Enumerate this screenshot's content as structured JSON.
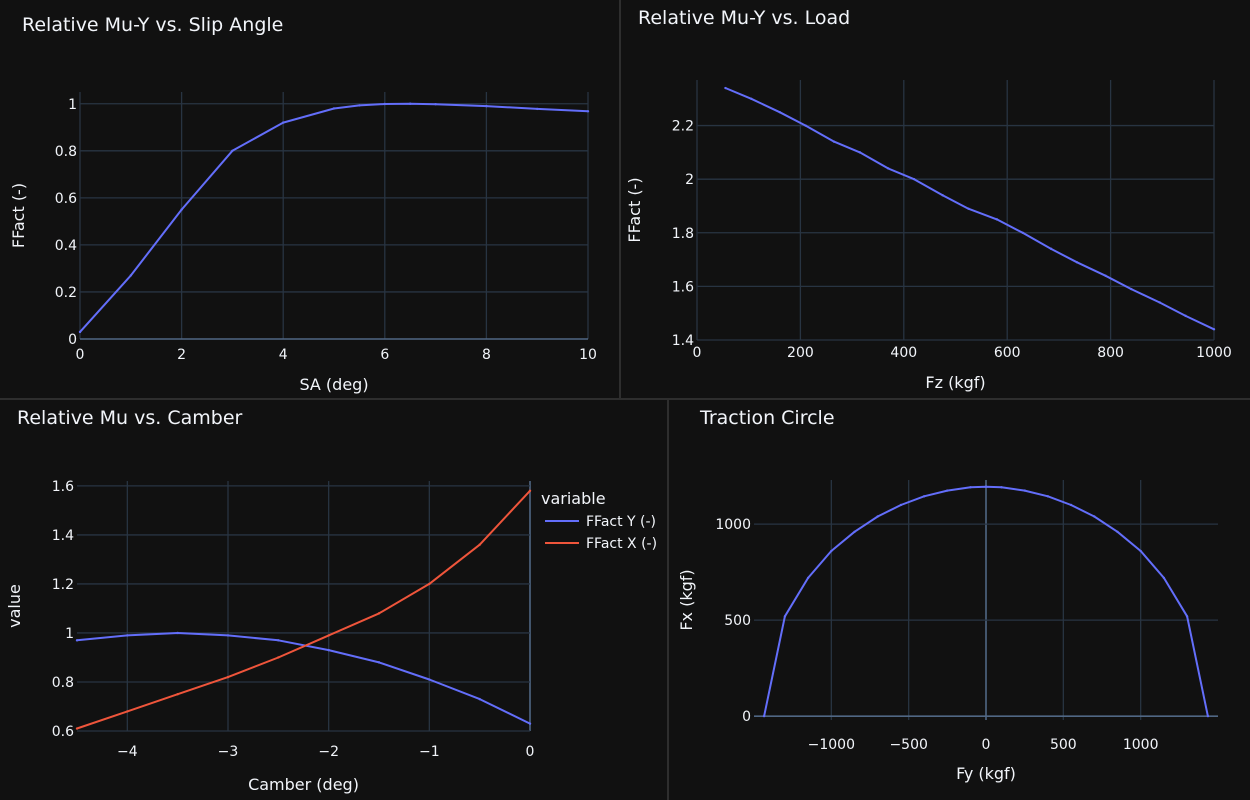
{
  "colors": {
    "background": "#111111",
    "grid": "#283442",
    "zeroline": "#506784",
    "text": "#f2f5fa",
    "series_blue": "#636efa",
    "series_red": "#ef553b"
  },
  "chart_data": [
    {
      "type": "line",
      "title": "Relative Mu-Y vs. Slip Angle",
      "xlabel": "SA (deg)",
      "ylabel": "FFact (-)",
      "xlim": [
        0,
        10
      ],
      "ylim": [
        0,
        1.05
      ],
      "xticks": [
        0,
        2,
        4,
        6,
        8,
        10
      ],
      "yticks": [
        0,
        0.2,
        0.4,
        0.6,
        0.8,
        1
      ],
      "grid": true,
      "series": [
        {
          "color": "#636efa",
          "x": [
            0,
            1,
            2,
            3,
            4,
            5,
            5.5,
            6,
            6.5,
            7,
            8,
            9,
            10
          ],
          "y": [
            0.03,
            0.27,
            0.55,
            0.8,
            0.92,
            0.98,
            0.993,
            0.999,
            1.0,
            0.998,
            0.99,
            0.978,
            0.968
          ]
        }
      ]
    },
    {
      "type": "line",
      "title": "Relative Mu-Y vs. Load",
      "xlabel": "Fz (kgf)",
      "ylabel": "FFact (-)",
      "xlim": [
        0,
        1000
      ],
      "ylim": [
        1.4,
        2.37
      ],
      "xticks": [
        0,
        200,
        400,
        600,
        800,
        1000
      ],
      "yticks": [
        1.4,
        1.6,
        1.8,
        2,
        2.2
      ],
      "grid": true,
      "series": [
        {
          "color": "#636efa",
          "x": [
            55,
            105,
            160,
            210,
            265,
            315,
            370,
            420,
            475,
            525,
            580,
            630,
            685,
            735,
            790,
            840,
            895,
            945,
            1000
          ],
          "y": [
            2.34,
            2.3,
            2.25,
            2.2,
            2.14,
            2.1,
            2.04,
            2.0,
            1.94,
            1.89,
            1.85,
            1.8,
            1.74,
            1.69,
            1.64,
            1.59,
            1.54,
            1.49,
            1.44
          ]
        }
      ]
    },
    {
      "type": "line",
      "title": "Relative Mu vs. Camber",
      "xlabel": "Camber (deg)",
      "ylabel": "value",
      "xlim": [
        -4.5,
        0
      ],
      "ylim": [
        0.6,
        1.62
      ],
      "xticks": [
        -4,
        -3,
        -2,
        -1,
        0
      ],
      "xtick_labels": [
        "−4",
        "−3",
        "−2",
        "−1",
        "0"
      ],
      "yticks": [
        0.6,
        0.8,
        1,
        1.2,
        1.4,
        1.6
      ],
      "grid": true,
      "legend": {
        "title": "variable",
        "placement": "right"
      },
      "series": [
        {
          "name": "FFact Y (-)",
          "color": "#636efa",
          "x": [
            -4.5,
            -4,
            -3.5,
            -3,
            -2.5,
            -2,
            -1.5,
            -1,
            -0.5,
            0
          ],
          "y": [
            0.97,
            0.99,
            1.0,
            0.99,
            0.97,
            0.93,
            0.88,
            0.81,
            0.73,
            0.63
          ]
        },
        {
          "name": "FFact X (-)",
          "color": "#ef553b",
          "x": [
            -4.5,
            -4,
            -3.5,
            -3,
            -2.5,
            -2,
            -1.5,
            -1,
            -0.5,
            0
          ],
          "y": [
            0.61,
            0.68,
            0.75,
            0.82,
            0.9,
            0.99,
            1.08,
            1.2,
            1.36,
            1.58
          ]
        }
      ]
    },
    {
      "type": "line",
      "title": "Traction Circle",
      "xlabel": "Fy (kgf)",
      "ylabel": "Fx (kgf)",
      "xlim": [
        -1500,
        1500
      ],
      "ylim": [
        -20,
        1230
      ],
      "xticks": [
        -1000,
        -500,
        0,
        500,
        1000
      ],
      "xtick_labels": [
        "−1000",
        "−500",
        "0",
        "500",
        "1000"
      ],
      "yticks": [
        0,
        500,
        1000
      ],
      "grid": true,
      "series": [
        {
          "color": "#636efa",
          "x": [
            -1435,
            -1300,
            -1150,
            -1000,
            -850,
            -700,
            -550,
            -400,
            -250,
            -100,
            0,
            100,
            250,
            400,
            550,
            700,
            850,
            1000,
            1150,
            1300,
            1435
          ],
          "y": [
            0,
            520,
            720,
            860,
            960,
            1040,
            1100,
            1145,
            1175,
            1192,
            1195,
            1192,
            1175,
            1145,
            1100,
            1040,
            960,
            860,
            720,
            520,
            0
          ]
        }
      ]
    }
  ]
}
